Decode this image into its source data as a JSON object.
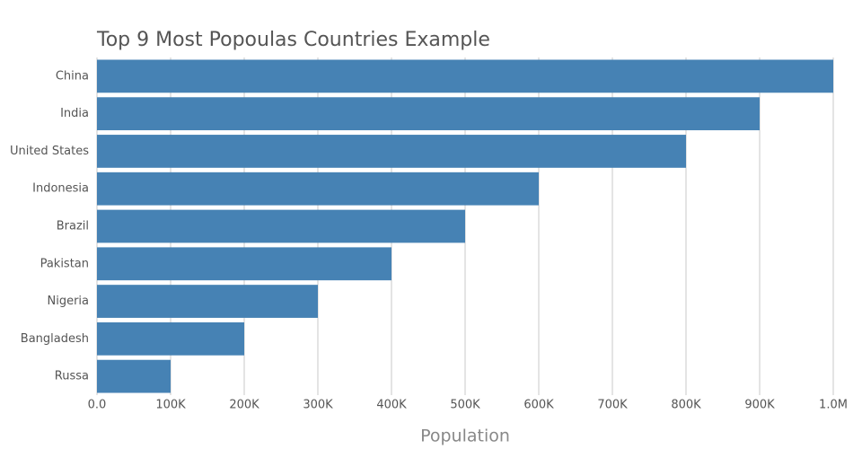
{
  "chart_data": {
    "type": "bar",
    "orientation": "horizontal",
    "title": "Top 9 Most Popoulas Countries Example",
    "x_label": "Population",
    "categories": [
      "China",
      "India",
      "United States",
      "Indonesia",
      "Brazil",
      "Pakistan",
      "Nigeria",
      "Bangladesh",
      "Russa"
    ],
    "values": [
      1000000,
      900000,
      800000,
      600000,
      500000,
      400000,
      300000,
      200000,
      100000
    ],
    "color": "#4682b4",
    "xlim": [
      0,
      1000000
    ],
    "xticks": [
      {
        "value": 0,
        "label": "0.0"
      },
      {
        "value": 100000,
        "label": "100K"
      },
      {
        "value": 200000,
        "label": "200K"
      },
      {
        "value": 300000,
        "label": "300K"
      },
      {
        "value": 400000,
        "label": "400K"
      },
      {
        "value": 500000,
        "label": "500K"
      },
      {
        "value": 600000,
        "label": "600K"
      },
      {
        "value": 700000,
        "label": "700K"
      },
      {
        "value": 800000,
        "label": "800K"
      },
      {
        "value": 900000,
        "label": "900K"
      },
      {
        "value": 1000000,
        "label": "1.0M"
      }
    ],
    "grid": true
  }
}
